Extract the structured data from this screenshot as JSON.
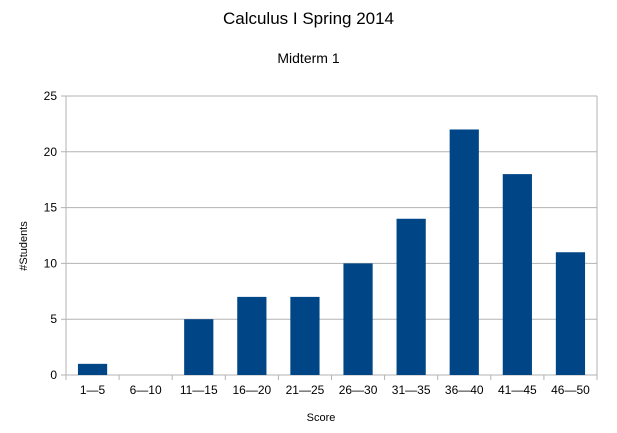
{
  "chart_data": {
    "type": "bar",
    "title": "Calculus I Spring 2014",
    "subtitle": "Midterm 1",
    "xlabel": "Score",
    "ylabel": "#Students",
    "categories": [
      "1—5",
      "6—10",
      "11—15",
      "16—20",
      "21—25",
      "26—30",
      "31—35",
      "36—40",
      "41—45",
      "46—50"
    ],
    "values": [
      1,
      0,
      5,
      7,
      7,
      10,
      14,
      22,
      18,
      11
    ],
    "ylim": [
      0,
      25
    ],
    "yticks": [
      0,
      5,
      10,
      15,
      20,
      25
    ],
    "grid": true,
    "legend": "none",
    "colors": {
      "bar": "#004586",
      "grid": "#b3b3b3",
      "axis": "#b3b3b3"
    }
  }
}
